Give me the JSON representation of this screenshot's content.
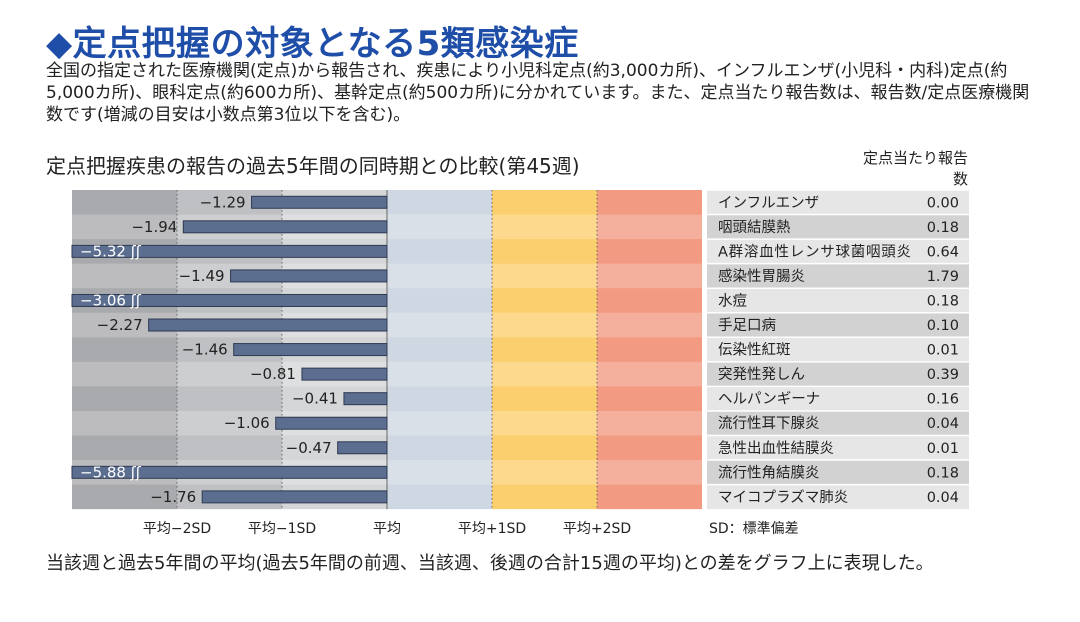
{
  "header": {
    "title": "◆定点把握の対象となる5類感染症",
    "intro": "全国の指定された医療機関(定点)から報告され、疾患により小児科定点(約3,000カ所)、インフルエンザ(小児科・内科)定点(約5,000カ所)、眼科定点(約600カ所)、基幹定点(約500カ所)に分かれています。また、定点当たり報告数は、報告数/定点医療機関数です(増減の目安は小数点第3位以下を含む)。"
  },
  "chart_data": {
    "type": "bar",
    "title": "定点把握疾患の報告の過去5年間の同時期との比較(第45週)",
    "table_header": "定点当たり報告数",
    "x_tick_labels": [
      "平均−2SD",
      "平均−1SD",
      "平均",
      "平均+1SD",
      "平均+2SD"
    ],
    "x_ticks": [
      -2,
      -1,
      0,
      1,
      2
    ],
    "xlim": [
      -3,
      3
    ],
    "sd_note": "SD：標準偏差",
    "categories": [
      "インフルエンザ",
      "咽頭結膜熱",
      "A群溶血性レンサ球菌咽頭炎",
      "感染性胃腸炎",
      "水痘",
      "手足口病",
      "伝染性紅斑",
      "突発性発しん",
      "ヘルパンギーナ",
      "流行性耳下腺炎",
      "急性出血性結膜炎",
      "流行性角結膜炎",
      "マイコプラズマ肺炎"
    ],
    "values": [
      -1.29,
      -1.94,
      -5.32,
      -1.49,
      -3.06,
      -2.27,
      -1.46,
      -0.81,
      -0.41,
      -1.06,
      -0.47,
      -5.88,
      -1.76
    ],
    "value_labels": [
      "−1.29",
      "−1.94",
      "−5.32",
      "−1.49",
      "−3.06",
      "−2.27",
      "−1.46",
      "−0.81",
      "−0.41",
      "−1.06",
      "−0.47",
      "−5.88",
      "−1.76"
    ],
    "reports_per_site": [
      "0.00",
      "0.18",
      "0.64",
      "1.79",
      "0.18",
      "0.10",
      "0.01",
      "0.39",
      "0.16",
      "0.04",
      "0.01",
      "0.18",
      "0.04"
    ],
    "colors": {
      "zone_below_2sd": "#a9aaad",
      "zone_minus2_minus1": "#bfc0c3",
      "zone_minus1_mean": "#d5d6d8",
      "zone_mean_plus1": "#cfd8e2",
      "zone_plus1_plus2": "#fbcf6e",
      "zone_above_2sd": "#f39a82",
      "bar": "#5c6e8f",
      "table_row_light": "#e6e6e6",
      "table_row_dark": "#d2d2d2"
    }
  },
  "footer": {
    "caption": "当該週と過去5年間の平均(過去5年間の前週、当該週、後週の合計15週の平均)との差をグラフ上に表現した。"
  }
}
